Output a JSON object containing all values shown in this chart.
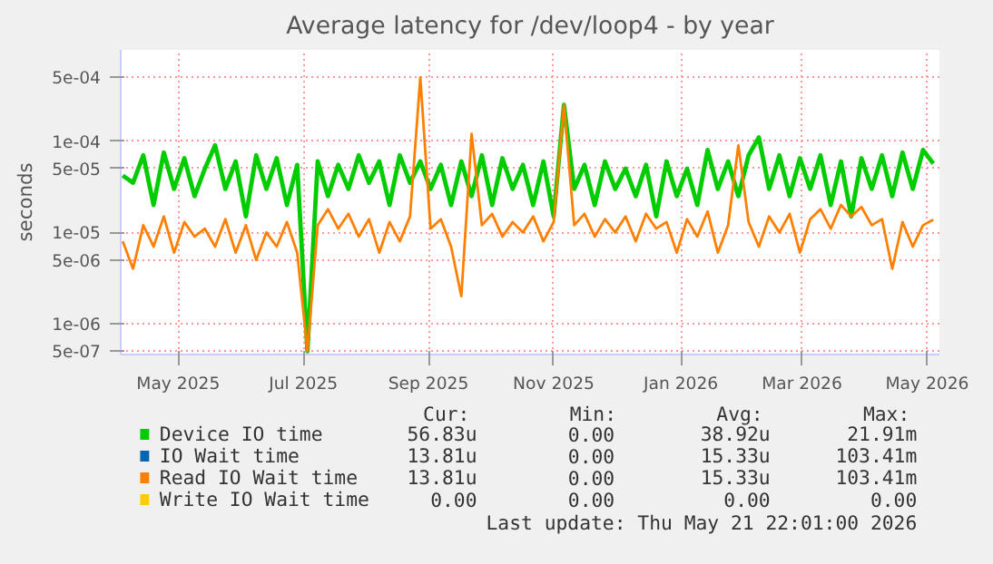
{
  "chart_data": {
    "type": "line",
    "title": "Average latency for /dev/loop4 - by year",
    "ylabel": "seconds",
    "log": "y",
    "grid": true,
    "legend": "bottom",
    "marker": "none",
    "line_style": "solid",
    "xlim": [
      "2025-04-18",
      "2026-05-22"
    ],
    "xticks": [
      {
        "value": "2025-05-16",
        "label": "May 2025"
      },
      {
        "value": "2025-07-16",
        "label": "Jul 2025"
      },
      {
        "value": "2025-09-15",
        "label": "Sep 2025"
      },
      {
        "value": "2025-11-15",
        "label": "Nov 2025"
      },
      {
        "value": "2026-01-16",
        "label": "Jan 2026"
      },
      {
        "value": "2026-03-16",
        "label": "Mar 2026"
      },
      {
        "value": "2026-05-16",
        "label": "May 2026"
      }
    ],
    "ylim": [
      4.6e-07,
      0.001
    ],
    "yticks": [
      {
        "value": 5e-07,
        "label": "5e-07"
      },
      {
        "value": 1e-06,
        "label": "1e-06"
      },
      {
        "value": 5e-06,
        "label": "5e-06"
      },
      {
        "value": 1e-05,
        "label": "1e-05"
      },
      {
        "value": 5e-05,
        "label": "5e-05"
      },
      {
        "value": 0.0001,
        "label": "1e-04"
      },
      {
        "value": 0.0005,
        "label": "5e-04"
      }
    ],
    "x": [
      "2025-04-19",
      "2025-04-24",
      "2025-04-29",
      "2025-05-04",
      "2025-05-09",
      "2025-05-14",
      "2025-05-19",
      "2025-05-24",
      "2025-05-29",
      "2025-06-03",
      "2025-06-08",
      "2025-06-13",
      "2025-06-18",
      "2025-06-23",
      "2025-06-28",
      "2025-07-03",
      "2025-07-08",
      "2025-07-13",
      "2025-07-18",
      "2025-07-23",
      "2025-07-28",
      "2025-08-02",
      "2025-08-07",
      "2025-08-12",
      "2025-08-17",
      "2025-08-22",
      "2025-08-27",
      "2025-09-01",
      "2025-09-06",
      "2025-09-11",
      "2025-09-16",
      "2025-09-21",
      "2025-09-26",
      "2025-10-01",
      "2025-10-06",
      "2025-10-11",
      "2025-10-16",
      "2025-10-21",
      "2025-10-26",
      "2025-10-31",
      "2025-11-05",
      "2025-11-10",
      "2025-11-15",
      "2025-11-20",
      "2025-11-25",
      "2025-11-30",
      "2025-12-05",
      "2025-12-10",
      "2025-12-15",
      "2025-12-20",
      "2025-12-25",
      "2025-12-30",
      "2026-01-04",
      "2026-01-09",
      "2026-01-14",
      "2026-01-19",
      "2026-01-24",
      "2026-01-29",
      "2026-02-03",
      "2026-02-08",
      "2026-02-13",
      "2026-02-18",
      "2026-02-23",
      "2026-02-28",
      "2026-03-05",
      "2026-03-10",
      "2026-03-15",
      "2026-03-20",
      "2026-03-25",
      "2026-03-30",
      "2026-04-04",
      "2026-04-09",
      "2026-04-14",
      "2026-04-19",
      "2026-04-24",
      "2026-04-29",
      "2026-05-04",
      "2026-05-09",
      "2026-05-14",
      "2026-05-19"
    ],
    "series": [
      {
        "name": "Device IO time",
        "color": "#00cc00",
        "values": [
          4.2e-05,
          3.5e-05,
          7e-05,
          2e-05,
          7.5e-05,
          3e-05,
          6.5e-05,
          2.5e-05,
          5e-05,
          9e-05,
          3e-05,
          6e-05,
          1.5e-05,
          7e-05,
          3e-05,
          6.5e-05,
          2e-05,
          5.5e-05,
          5e-07,
          6e-05,
          2.5e-05,
          5.5e-05,
          3e-05,
          7e-05,
          3.5e-05,
          6e-05,
          2e-05,
          7e-05,
          3.5e-05,
          6e-05,
          3e-05,
          5.5e-05,
          2e-05,
          6e-05,
          2.5e-05,
          7e-05,
          2e-05,
          6.5e-05,
          3e-05,
          5.5e-05,
          2e-05,
          6e-05,
          1.5e-05,
          0.00025,
          3e-05,
          5.5e-05,
          2e-05,
          6e-05,
          3e-05,
          5e-05,
          2.5e-05,
          5.5e-05,
          1.5e-05,
          6e-05,
          2.5e-05,
          5e-05,
          2e-05,
          8e-05,
          3e-05,
          6e-05,
          2.5e-05,
          7e-05,
          0.00011,
          3e-05,
          7e-05,
          2.5e-05,
          6.5e-05,
          3e-05,
          7e-05,
          2e-05,
          6e-05,
          1.5e-05,
          6.5e-05,
          3e-05,
          7e-05,
          2.5e-05,
          7.5e-05,
          3e-05,
          8e-05,
          5.68e-05
        ]
      },
      {
        "name": "IO Wait time",
        "color": "#0066b3",
        "values": [
          null,
          null,
          null,
          null,
          null,
          null,
          null,
          null,
          null,
          null,
          null,
          null,
          null,
          null,
          null,
          null,
          null,
          null,
          null,
          null,
          null,
          null,
          null,
          null,
          null,
          null,
          null,
          null,
          null,
          null,
          null,
          null,
          null,
          null,
          null,
          null,
          null,
          null,
          null,
          null,
          null,
          null,
          null,
          null,
          null,
          null,
          null,
          null,
          null,
          null,
          null,
          null,
          null,
          null,
          null,
          null,
          null,
          null,
          null,
          null,
          null,
          null,
          null,
          null,
          null,
          null,
          null,
          null,
          null,
          null,
          null,
          null,
          null,
          null,
          null,
          null,
          null,
          null,
          null,
          null
        ]
      },
      {
        "name": "Read IO Wait time",
        "color": "#ff8000",
        "values": [
          8e-06,
          4e-06,
          1.2e-05,
          7e-06,
          1.5e-05,
          6e-06,
          1.3e-05,
          9e-06,
          1.1e-05,
          7e-06,
          1.4e-05,
          6e-06,
          1.2e-05,
          5e-06,
          1e-05,
          7e-06,
          1.3e-05,
          6e-06,
          5e-07,
          1.2e-05,
          1.8e-05,
          1.1e-05,
          1.6e-05,
          9e-06,
          1.4e-05,
          6e-06,
          1.3e-05,
          8e-06,
          1.5e-05,
          0.0005,
          1.1e-05,
          1.4e-05,
          7e-06,
          2e-06,
          0.00012,
          1.2e-05,
          1.6e-05,
          9e-06,
          1.3e-05,
          1e-05,
          1.5e-05,
          8e-06,
          1.3e-05,
          0.00025,
          1.2e-05,
          1.6e-05,
          9e-06,
          1.4e-05,
          1e-05,
          1.5e-05,
          8e-06,
          1.6e-05,
          1.1e-05,
          1.3e-05,
          6e-06,
          1.4e-05,
          9e-06,
          1.7e-05,
          6e-06,
          1.2e-05,
          9e-05,
          1.3e-05,
          7e-06,
          1.5e-05,
          1e-05,
          1.6e-05,
          6e-06,
          1.4e-05,
          1.8e-05,
          1.1e-05,
          2e-05,
          1.5e-05,
          1.9e-05,
          1.2e-05,
          1.4e-05,
          4e-06,
          1.3e-05,
          7e-06,
          1.2e-05,
          1.38e-05
        ]
      },
      {
        "name": "Write IO Wait time",
        "color": "#ffcc00",
        "values": [
          null,
          null,
          null,
          null,
          null,
          null,
          null,
          null,
          null,
          null,
          null,
          null,
          null,
          null,
          null,
          null,
          null,
          null,
          null,
          null,
          null,
          null,
          null,
          null,
          null,
          null,
          null,
          null,
          null,
          null,
          null,
          null,
          null,
          null,
          null,
          null,
          null,
          null,
          null,
          null,
          null,
          null,
          null,
          null,
          null,
          null,
          null,
          null,
          null,
          null,
          null,
          null,
          null,
          null,
          null,
          null,
          null,
          null,
          null,
          null,
          null,
          null,
          null,
          null,
          null,
          null,
          null,
          null,
          null,
          null,
          null,
          null,
          null,
          null,
          null,
          null,
          null,
          null,
          null,
          null
        ]
      }
    ],
    "annotations": [
      "Cur:",
      "Min:",
      "Avg:",
      "Max:",
      "56.83u",
      "0.00",
      "38.92u",
      "21.91m",
      "13.81u",
      "0.00",
      "15.33u",
      "103.41m",
      "13.81u",
      "0.00",
      "15.33u",
      "103.41m",
      "0.00",
      "0.00",
      "0.00",
      "0.00",
      "Last update: Thu May 21 22:01:00 2026"
    ]
  }
}
